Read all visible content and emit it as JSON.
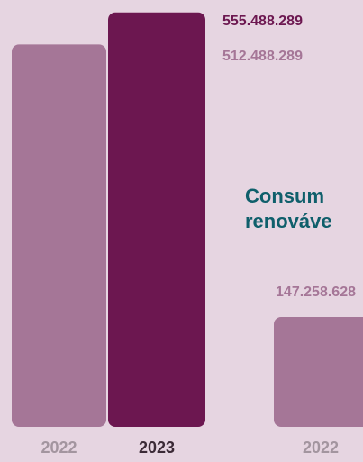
{
  "chart_data": [
    {
      "type": "bar",
      "categories": [
        "2022",
        "2023"
      ],
      "values": [
        512488289,
        555488289
      ],
      "value_labels": [
        "512.488.289",
        "555.488.289"
      ],
      "colors": [
        "#a57697",
        "#6c1750"
      ],
      "ylim": [
        0,
        560000000
      ]
    },
    {
      "type": "bar",
      "title_lines": [
        "Consum",
        "renováve"
      ],
      "categories": [
        "2022"
      ],
      "values": [
        147258628
      ],
      "value_labels": [
        "147.258.628"
      ],
      "colors": [
        "#a57697"
      ],
      "ylim": [
        0,
        560000000
      ]
    }
  ]
}
